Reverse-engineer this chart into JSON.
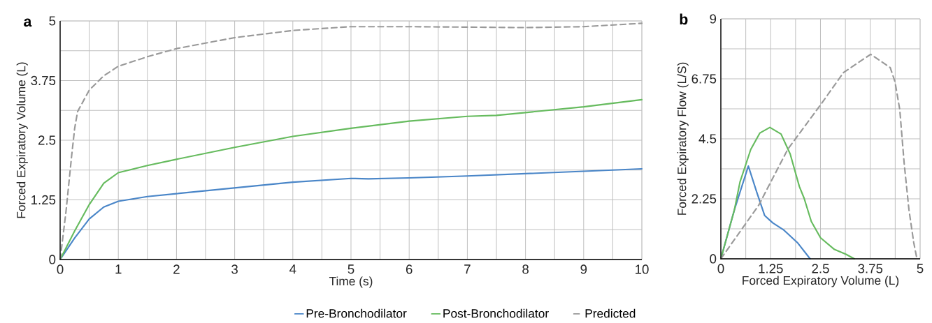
{
  "chart_data": [
    {
      "type": "line",
      "title": "a",
      "xlabel": "Time (s)",
      "ylabel": "Forced Expiratory Volume (L)",
      "xlim": [
        0,
        10
      ],
      "ylim": [
        0,
        5
      ],
      "xticks": [
        0,
        {
          "value": 0.5,
          "label": null
        },
        1,
        {
          "value": 1.5,
          "label": null
        },
        2,
        {
          "value": 2.5,
          "label": null
        },
        3,
        {
          "value": 3.5,
          "label": null
        },
        4,
        {
          "value": 4.5,
          "label": null
        },
        5,
        {
          "value": 5.5,
          "label": null
        },
        6,
        {
          "value": 6.5,
          "label": null
        },
        7,
        {
          "value": 7.5,
          "label": null
        },
        8,
        {
          "value": 8.5,
          "label": null
        },
        9,
        {
          "value": 9.5,
          "label": null
        },
        10
      ],
      "yticks": [
        0,
        {
          "value": 0.625,
          "label": null
        },
        1.25,
        {
          "value": 1.875,
          "label": null
        },
        2.5,
        {
          "value": 3.125,
          "label": null
        },
        3.75,
        {
          "value": 4.375,
          "label": null
        },
        5
      ],
      "grid": true,
      "legend": "bottom",
      "series": [
        {
          "name": "Pre-Bronchodilator",
          "color": "#4a86c8",
          "line_style": "solid",
          "x": [
            0,
            0.25,
            0.5,
            0.75,
            1,
            1.5,
            2,
            3,
            4,
            5,
            5.3,
            6,
            7,
            8,
            9,
            10
          ],
          "values": [
            0,
            0.45,
            0.85,
            1.1,
            1.22,
            1.32,
            1.38,
            1.5,
            1.62,
            1.7,
            1.69,
            1.71,
            1.75,
            1.8,
            1.85,
            1.9
          ]
        },
        {
          "name": "Post-Bronchodilator",
          "color": "#66bb5e",
          "line_style": "solid",
          "x": [
            0,
            0.25,
            0.5,
            0.75,
            1,
            1.5,
            2,
            3,
            4,
            5,
            6,
            7,
            7.5,
            8,
            9,
            10
          ],
          "values": [
            0,
            0.6,
            1.15,
            1.6,
            1.82,
            1.97,
            2.1,
            2.35,
            2.58,
            2.75,
            2.9,
            3.0,
            3.02,
            3.08,
            3.2,
            3.35
          ]
        },
        {
          "name": "Predicted",
          "color": "#999999",
          "line_style": "dashed",
          "x": [
            0,
            0.1,
            0.2,
            0.25,
            0.3,
            0.5,
            0.75,
            1,
            1.5,
            2,
            3,
            4,
            5,
            6,
            7,
            8,
            9,
            10
          ],
          "values": [
            0,
            1.0,
            2.2,
            2.75,
            3.1,
            3.55,
            3.85,
            4.05,
            4.25,
            4.42,
            4.65,
            4.8,
            4.88,
            4.88,
            4.87,
            4.86,
            4.88,
            4.95
          ]
        }
      ]
    },
    {
      "type": "line",
      "title": "b",
      "xlabel": "Forced Expiratory Volume (L)",
      "ylabel": "Forced Expiratory Flow (L/S)",
      "xlim": [
        0,
        5
      ],
      "ylim": [
        0,
        9
      ],
      "xticks": [
        0,
        {
          "value": 0.625,
          "label": null
        },
        1.25,
        {
          "value": 1.875,
          "label": null
        },
        2.5,
        {
          "value": 3.125,
          "label": null
        },
        3.75,
        {
          "value": 4.375,
          "label": null
        },
        5
      ],
      "yticks": [
        0,
        {
          "value": 1.125,
          "label": null
        },
        2.25,
        {
          "value": 3.375,
          "label": null
        },
        4.5,
        {
          "value": 5.625,
          "label": null
        },
        6.75,
        {
          "value": 7.875,
          "label": null
        },
        9
      ],
      "grid": true,
      "series": [
        {
          "color": "#4a86c8",
          "line_style": "solid",
          "x": [
            0,
            0.34,
            0.69,
            0.9,
            1.1,
            1.3,
            1.57,
            1.92,
            2.24
          ],
          "values": [
            0,
            1.84,
            3.48,
            2.5,
            1.62,
            1.35,
            1.09,
            0.61,
            0
          ]
        },
        {
          "color": "#66bb5e",
          "line_style": "solid",
          "x": [
            0,
            0.34,
            0.48,
            0.75,
            0.98,
            1.23,
            1.51,
            1.74,
            1.97,
            2.09,
            2.27,
            2.5,
            2.85,
            3.14,
            3.35
          ],
          "values": [
            0,
            1.84,
            2.88,
            4.1,
            4.72,
            4.93,
            4.68,
            3.93,
            2.71,
            2.27,
            1.4,
            0.79,
            0.35,
            0.17,
            0
          ]
        },
        {
          "color": "#999999",
          "line_style": "dashed",
          "x": [
            0,
            0.95,
            1.68,
            2.5,
            3.08,
            3.76,
            4.25,
            4.37,
            4.49,
            4.6,
            4.72,
            4.84,
            4.92
          ],
          "values": [
            0,
            2.01,
            4.11,
            5.77,
            6.99,
            7.67,
            7.17,
            6.64,
            5.59,
            3.58,
            1.84,
            0.61,
            0
          ]
        }
      ]
    }
  ]
}
